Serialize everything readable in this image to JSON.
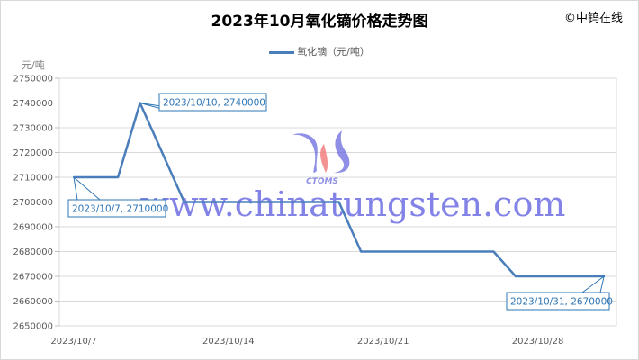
{
  "copyright": "©中钨在线",
  "watermark": {
    "logo_text": "CTOMS",
    "url": "www.chinatungsten.com"
  },
  "chart_data": {
    "type": "line",
    "title": "2023年10月氧化镝价格走势图",
    "ylabel": "元/吨",
    "xlabel": "",
    "legend_position": "top",
    "grid": true,
    "ylim": [
      2650000,
      2750000
    ],
    "yticks": [
      2650000,
      2660000,
      2670000,
      2680000,
      2690000,
      2700000,
      2710000,
      2720000,
      2730000,
      2740000,
      2750000
    ],
    "xticks": [
      "2023/10/7",
      "2023/10/14",
      "2023/10/21",
      "2023/10/28"
    ],
    "series": [
      {
        "name": "氧化镝（元/吨）",
        "color": "#4a7ebb",
        "x": [
          "2023/10/7",
          "2023/10/8",
          "2023/10/9",
          "2023/10/10",
          "2023/10/11",
          "2023/10/12",
          "2023/10/13",
          "2023/10/14",
          "2023/10/15",
          "2023/10/16",
          "2023/10/17",
          "2023/10/18",
          "2023/10/19",
          "2023/10/20",
          "2023/10/21",
          "2023/10/22",
          "2023/10/23",
          "2023/10/24",
          "2023/10/25",
          "2023/10/26",
          "2023/10/27",
          "2023/10/28",
          "2023/10/29",
          "2023/10/30",
          "2023/10/31"
        ],
        "values": [
          2710000,
          2710000,
          2710000,
          2740000,
          2720000,
          2700000,
          2700000,
          2700000,
          2700000,
          2700000,
          2700000,
          2700000,
          2700000,
          2680000,
          2680000,
          2680000,
          2680000,
          2680000,
          2680000,
          2680000,
          2670000,
          2670000,
          2670000,
          2670000,
          2670000
        ]
      }
    ],
    "annotations": [
      {
        "x": "2023/10/7",
        "label": "2023/10/7, 2710000"
      },
      {
        "x": "2023/10/10",
        "label": "2023/10/10, 2740000"
      },
      {
        "x": "2023/10/31",
        "label": "2023/10/31, 2670000"
      }
    ]
  }
}
